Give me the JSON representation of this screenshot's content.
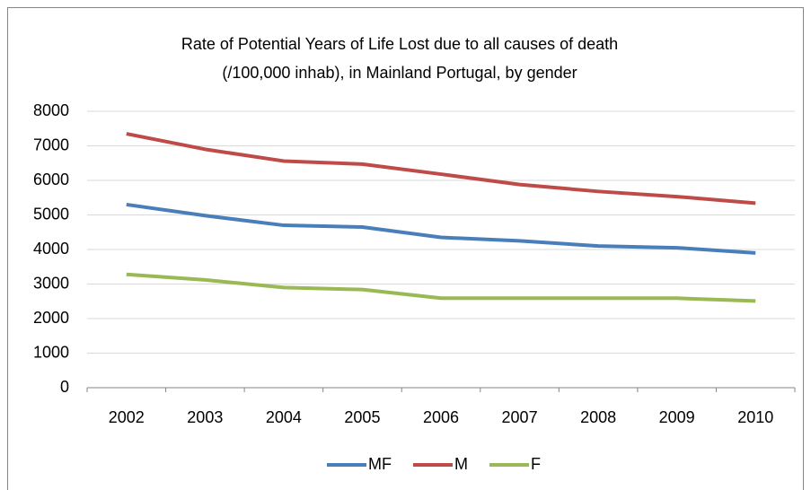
{
  "chart_data": {
    "type": "line",
    "title_lines": [
      "Rate of Potential Years of Life Lost due to all causes of death",
      "(/100,000 inhab), in Mainland Portugal, by gender"
    ],
    "categories": [
      "2002",
      "2003",
      "2004",
      "2005",
      "2006",
      "2007",
      "2008",
      "2009",
      "2010"
    ],
    "series": [
      {
        "name": "MF",
        "color": "#4a7ebb",
        "values": [
          5300,
          4980,
          4700,
          4650,
          4350,
          4250,
          4100,
          4050,
          3900
        ]
      },
      {
        "name": "M",
        "color": "#be4b48",
        "values": [
          7350,
          6900,
          6560,
          6470,
          6180,
          5880,
          5680,
          5530,
          5340
        ]
      },
      {
        "name": "F",
        "color": "#98b954",
        "values": [
          3280,
          3120,
          2900,
          2840,
          2590,
          2590,
          2590,
          2590,
          2510
        ]
      }
    ],
    "ylim": [
      0,
      8000
    ],
    "yticks": [
      0,
      1000,
      2000,
      3000,
      4000,
      5000,
      6000,
      7000,
      8000
    ],
    "grid": true,
    "legend": "bottom"
  }
}
